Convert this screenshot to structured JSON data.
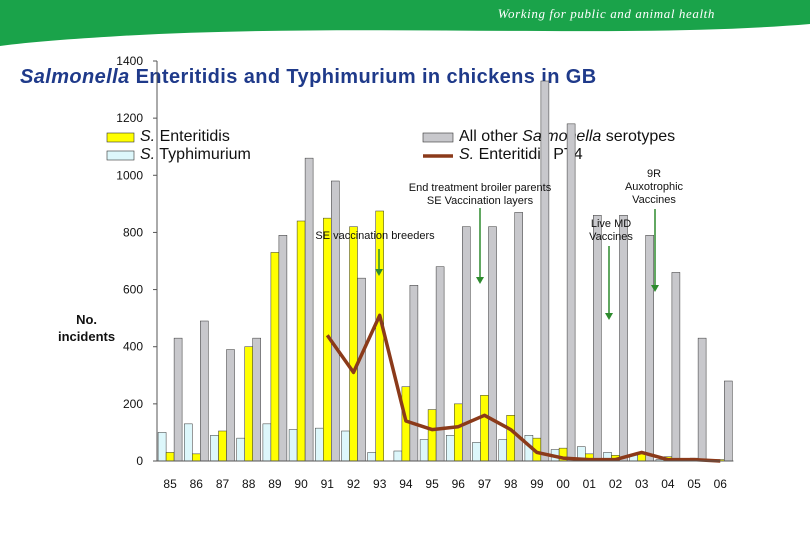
{
  "banner": {
    "tagline": "Working for public and animal health",
    "color": "#1aa34a"
  },
  "title": {
    "prefix": "Salmonella",
    "rest": " Enteritidis and Typhimurium in chickens in GB"
  },
  "chart_data": {
    "type": "bar",
    "ylabel_line1": "No.",
    "ylabel_line2": "incidents",
    "ylim": [
      0,
      1400
    ],
    "yticks": [
      0,
      200,
      400,
      600,
      800,
      1000,
      1200,
      1400
    ],
    "categories": [
      "85",
      "86",
      "87",
      "88",
      "89",
      "90",
      "91",
      "92",
      "93",
      "94",
      "95",
      "96",
      "97",
      "98",
      "99",
      "00",
      "01",
      "02",
      "03",
      "04",
      "05",
      "06"
    ],
    "series": [
      {
        "name": "S. Enteritidis",
        "kind": "bar",
        "color": "#ffff00",
        "values": [
          30,
          25,
          105,
          400,
          730,
          840,
          850,
          820,
          875,
          260,
          180,
          200,
          230,
          160,
          80,
          45,
          25,
          20,
          25,
          15,
          10,
          5
        ]
      },
      {
        "name": "S. Typhimurium",
        "kind": "bar",
        "color": "#ddf7fb",
        "values": [
          100,
          130,
          90,
          80,
          130,
          110,
          115,
          105,
          30,
          35,
          75,
          90,
          65,
          75,
          90,
          40,
          50,
          30,
          20,
          5,
          5,
          5
        ]
      },
      {
        "name": "All other Salmonella serotypes",
        "kind": "bar",
        "color": "#c8c8cc",
        "values": [
          430,
          490,
          390,
          430,
          790,
          1060,
          980,
          640,
          0,
          615,
          680,
          820,
          820,
          870,
          1330,
          1180,
          860,
          860,
          790,
          660,
          430,
          280
        ]
      },
      {
        "name": "S. Enteritidis PT4",
        "kind": "line",
        "color": "#8b3a1a",
        "values": [
          null,
          null,
          null,
          null,
          null,
          null,
          440,
          310,
          510,
          140,
          110,
          120,
          160,
          110,
          30,
          10,
          5,
          5,
          30,
          5,
          5,
          0
        ]
      }
    ],
    "legend": {
      "enteritidis": {
        "prefix": "S.",
        "text": " Enteritidis"
      },
      "typhimurium": {
        "prefix": "S.",
        "text": " Typhimurium"
      },
      "other": {
        "pre": "All other ",
        "ital": "Salmonella",
        "post": " serotypes"
      },
      "pt4": {
        "prefix": "S.",
        "text": " Enteritidis PT4"
      }
    },
    "annotations": [
      {
        "id": "breeders",
        "lines": [
          "SE vaccination breeders"
        ],
        "year": "93"
      },
      {
        "id": "broiler",
        "lines": [
          "End treatment broiler parents",
          "SE Vaccination layers"
        ],
        "year": "97"
      },
      {
        "id": "livemd",
        "lines": [
          "Live MD",
          "Vaccines"
        ],
        "year": "01"
      },
      {
        "id": "9r",
        "lines": [
          "9R",
          "Auxotrophic",
          "Vaccines"
        ],
        "year": "03"
      }
    ]
  }
}
